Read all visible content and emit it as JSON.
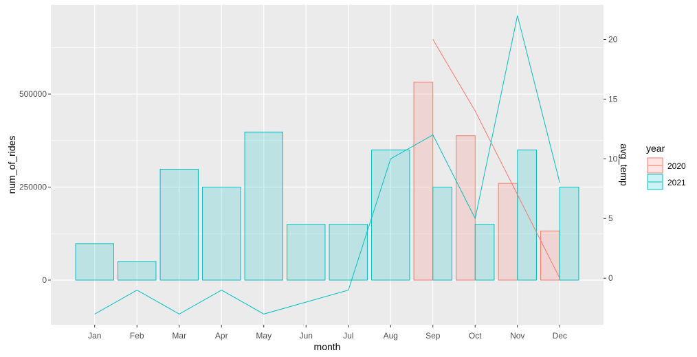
{
  "chart_data": {
    "type": "bar",
    "title": "",
    "xlabel": "month",
    "ylabel": "num_of_rides",
    "y2label": "avg_temp",
    "categories": [
      "Jan",
      "Feb",
      "Mar",
      "Apr",
      "May",
      "Jun",
      "Jul",
      "Aug",
      "Sep",
      "Oct",
      "Nov",
      "Dec"
    ],
    "ylim": [
      -120000,
      740000
    ],
    "y2lim": [
      -3.9,
      22.9
    ],
    "yticks": [
      0,
      250000,
      500000
    ],
    "ytick_labels": [
      "0",
      "250000",
      "500000"
    ],
    "y2ticks": [
      0,
      5,
      10,
      15,
      20
    ],
    "y2tick_labels": [
      "0",
      "5",
      "10",
      "15",
      "20"
    ],
    "grid": true,
    "legend": {
      "title": "year",
      "position": "right"
    },
    "series": [
      {
        "name": "2020",
        "color": "#F8766D",
        "rides": [
          null,
          null,
          null,
          null,
          null,
          null,
          null,
          null,
          532000,
          388000,
          260000,
          132000
        ],
        "avg_temp": [
          null,
          null,
          null,
          null,
          null,
          null,
          null,
          null,
          20,
          14,
          7,
          0
        ]
      },
      {
        "name": "2021",
        "color": "#00BFC4",
        "rides": [
          98000,
          50000,
          298000,
          250000,
          398000,
          150000,
          150000,
          350000,
          250000,
          150000,
          350000,
          250000
        ],
        "avg_temp": [
          -3,
          -1,
          -3,
          -1,
          -3,
          -2,
          -1,
          10,
          12,
          5,
          22,
          8
        ]
      }
    ]
  }
}
